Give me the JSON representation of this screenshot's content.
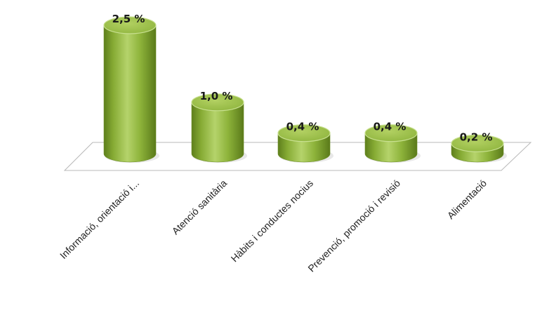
{
  "chart_data": {
    "type": "bar",
    "style": "3d-cylinder",
    "categories": [
      "Informació, orientació i...",
      "Atenció sanitària",
      "Hàbits i conductes nocius",
      "Prevenció, promoció i revisió",
      "Alimentació"
    ],
    "values": [
      2.5,
      1.0,
      0.4,
      0.4,
      0.2
    ],
    "value_labels": [
      "2,5 %",
      "1,0 %",
      "0,4 %",
      "0,4 %",
      "0,2 %"
    ],
    "title": "",
    "xlabel": "",
    "ylabel": "",
    "ylim": [
      0,
      2.5
    ],
    "grid": false,
    "legend": "none",
    "colors": {
      "bar_front": "#8db33a",
      "bar_light": "#b5d36b",
      "bar_dark": "#5e7f1c",
      "bar_top": "#9cc24a",
      "bar_top_edge": "#c8e090",
      "floor_fill": "#ffffff",
      "floor_edge": "#b8b8b8"
    }
  }
}
